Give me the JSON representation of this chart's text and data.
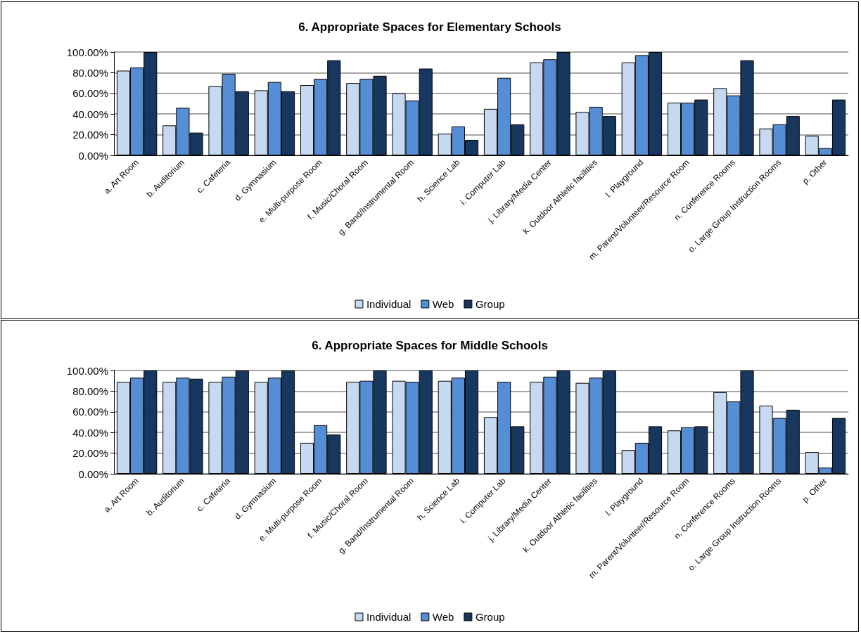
{
  "chart_data": [
    {
      "type": "bar",
      "title": "6. Appropriate Spaces for Elementary Schools",
      "categories": [
        "a. Art Room",
        "b. Auditorium",
        "c. Cafeteria",
        "d. Gymnasium",
        "e. Multi-purpose Room",
        "f. Music/Choral Room",
        "g. Band/Instrumental Room",
        "h. Science Lab",
        "i. Computer Lab",
        "j. Library/Media Center",
        "k. Outdoor Athletic facilities",
        "l. Playground",
        "m. Parent/Volunteer/Resource Room",
        "n. Conference Rooms",
        "o. Large Group Instruction Rooms",
        "p. Other"
      ],
      "series": [
        {
          "name": "Individual",
          "color": "#c6d9f0",
          "values": [
            82,
            29,
            67,
            63,
            68,
            70,
            60,
            21,
            45,
            90,
            42,
            90,
            51,
            65,
            26,
            19
          ]
        },
        {
          "name": "Web",
          "color": "#558ed5",
          "values": [
            85,
            46,
            79,
            71,
            74,
            74,
            53,
            28,
            75,
            93,
            47,
            97,
            51,
            58,
            30,
            7
          ]
        },
        {
          "name": "Group",
          "color": "#17375e",
          "values": [
            100,
            22,
            62,
            62,
            92,
            77,
            84,
            15,
            30,
            100,
            38,
            100,
            54,
            92,
            38,
            54
          ]
        }
      ],
      "ylim": [
        0,
        100
      ],
      "yticks": [
        {
          "value": 0,
          "label": "0.00%"
        },
        {
          "value": 20,
          "label": "20.00%"
        },
        {
          "value": 40,
          "label": "40.00%"
        },
        {
          "value": 60,
          "label": "60.00%"
        },
        {
          "value": 80,
          "label": "80.00%"
        },
        {
          "value": 100,
          "label": "100.00%"
        }
      ],
      "grid": "y",
      "legend": "bottom"
    },
    {
      "type": "bar",
      "title": "6. Appropriate Spaces for Middle Schools",
      "categories": [
        "a. Art Room",
        "b. Auditorium",
        "c. Cafeteria",
        "d. Gymnasium",
        "e. Multi-purpose Room",
        "f. Music/Choral Room",
        "g. Band/Instrumental Room",
        "h. Science Lab",
        "i. Computer Lab",
        "j. Library/Media Center",
        "k. Outdoor Athletic facilities",
        "l. Playground",
        "m. Parent/Volunteer/Resource Room",
        "n. Conference Rooms",
        "o. Large Group Instruction Rooms",
        "p. Other"
      ],
      "series": [
        {
          "name": "Individual",
          "color": "#c6d9f0",
          "values": [
            89,
            89,
            89,
            89,
            30,
            89,
            90,
            90,
            55,
            89,
            88,
            23,
            42,
            79,
            66,
            21
          ]
        },
        {
          "name": "Web",
          "color": "#558ed5",
          "values": [
            93,
            93,
            94,
            93,
            47,
            90,
            89,
            93,
            89,
            94,
            93,
            30,
            45,
            70,
            54,
            6
          ]
        },
        {
          "name": "Group",
          "color": "#17375e",
          "values": [
            100,
            92,
            100,
            100,
            38,
            100,
            100,
            100,
            46,
            100,
            100,
            46,
            46,
            100,
            62,
            54
          ]
        }
      ],
      "ylim": [
        0,
        100
      ],
      "yticks": [
        {
          "value": 0,
          "label": "0.00%"
        },
        {
          "value": 20,
          "label": "20.00%"
        },
        {
          "value": 40,
          "label": "40.00%"
        },
        {
          "value": 60,
          "label": "60.00%"
        },
        {
          "value": 80,
          "label": "80.00%"
        },
        {
          "value": 100,
          "label": "100.00%"
        }
      ],
      "grid": "y",
      "legend": "bottom"
    }
  ]
}
